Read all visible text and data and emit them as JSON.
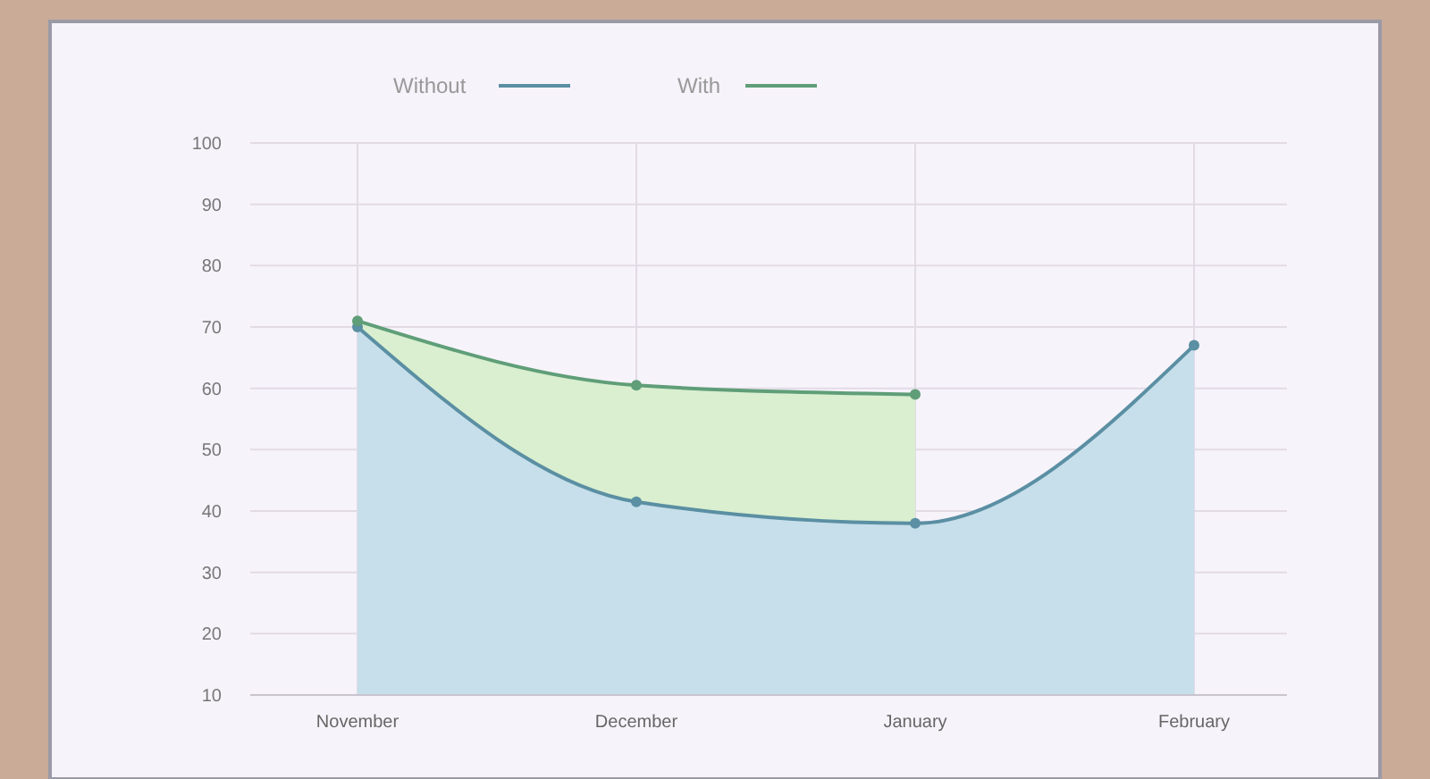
{
  "chart_data": {
    "type": "area",
    "categories": [
      "November",
      "December",
      "January",
      "February"
    ],
    "series": [
      {
        "name": "Without",
        "color": "#5b8fa3",
        "values": [
          70,
          41.5,
          38,
          67
        ]
      },
      {
        "name": "With",
        "color": "#5f9e78",
        "values": [
          71,
          60.5,
          59,
          null
        ]
      }
    ],
    "ylim": [
      10,
      100
    ],
    "yticks": [
      10,
      20,
      30,
      40,
      50,
      60,
      70,
      80,
      90,
      100
    ],
    "grid": true,
    "legend": "top",
    "marker": "circle"
  }
}
